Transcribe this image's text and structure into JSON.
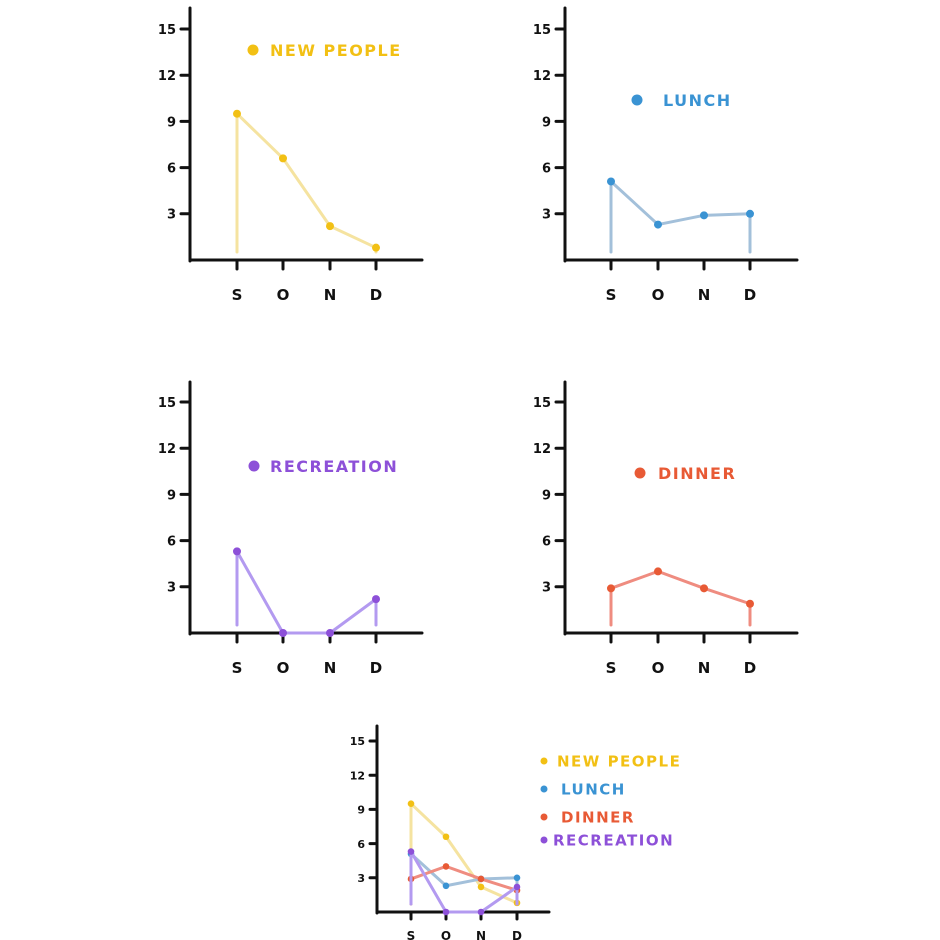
{
  "chart_data": [
    {
      "type": "line",
      "categories": [
        "S",
        "O",
        "N",
        "D"
      ],
      "yticks": [
        3,
        6,
        9,
        12,
        15
      ],
      "ylim": [
        0,
        16
      ],
      "legend": "top",
      "series": [
        {
          "name": "NEW PEOPLE",
          "color": "#f2c014",
          "line_color": "#f5e3a0",
          "values": [
            9.5,
            6.6,
            2.2,
            0.8
          ]
        }
      ]
    },
    {
      "type": "line",
      "categories": [
        "S",
        "O",
        "N",
        "D"
      ],
      "yticks": [
        3,
        6,
        9,
        12,
        15
      ],
      "ylim": [
        0,
        16
      ],
      "legend": "top",
      "series": [
        {
          "name": "LUNCH",
          "color": "#3a93d3",
          "line_color": "#a3c0da",
          "values": [
            5.1,
            2.3,
            2.9,
            3.0
          ]
        }
      ]
    },
    {
      "type": "line",
      "categories": [
        "S",
        "O",
        "N",
        "D"
      ],
      "yticks": [
        3,
        6,
        9,
        12,
        15
      ],
      "ylim": [
        0,
        16
      ],
      "legend": "top",
      "series": [
        {
          "name": "RECREATION",
          "color": "#8d50d8",
          "line_color": "#b39af0",
          "values": [
            5.3,
            0,
            0,
            2.2
          ]
        }
      ]
    },
    {
      "type": "line",
      "categories": [
        "S",
        "O",
        "N",
        "D"
      ],
      "yticks": [
        3,
        6,
        9,
        12,
        15
      ],
      "ylim": [
        0,
        16
      ],
      "legend": "top",
      "series": [
        {
          "name": "DINNER",
          "color": "#e85a35",
          "line_color": "#ef8c80",
          "values": [
            2.9,
            4.0,
            2.9,
            1.9
          ]
        }
      ]
    },
    {
      "type": "line",
      "categories": [
        "S",
        "O",
        "N",
        "D"
      ],
      "yticks": [
        3,
        6,
        9,
        12,
        15
      ],
      "ylim": [
        0,
        16
      ],
      "legend": "right",
      "series": [
        {
          "name": "NEW PEOPLE",
          "color": "#f2c014",
          "line_color": "#f5e3a0",
          "values": [
            9.5,
            6.6,
            2.2,
            0.8
          ]
        },
        {
          "name": "LUNCH",
          "color": "#3a93d3",
          "line_color": "#a3c0da",
          "values": [
            5.1,
            2.3,
            2.9,
            3.0
          ]
        },
        {
          "name": "DINNER",
          "color": "#e85a35",
          "line_color": "#ef8c80",
          "values": [
            2.9,
            4.0,
            2.9,
            1.9
          ]
        },
        {
          "name": "RECREATION",
          "color": "#8d50d8",
          "line_color": "#b39af0",
          "values": [
            5.3,
            0,
            0,
            2.2
          ]
        }
      ]
    }
  ]
}
